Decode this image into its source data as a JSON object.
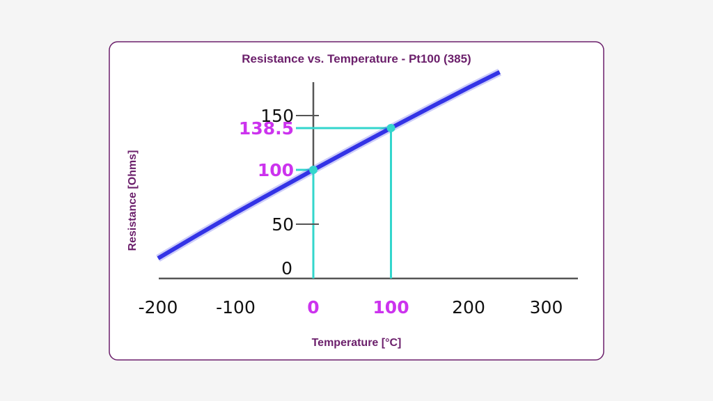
{
  "colors": {
    "frame": "#6b1f6b",
    "title": "#6b1f6b",
    "curve": "#3333e6",
    "guide": "#33d6cc",
    "highlight": "#cc33ee",
    "axis": "#555555",
    "text": "#111111"
  },
  "chart_data": {
    "type": "line",
    "title": "Resistance  vs. Temperature - Pt100 (385)",
    "xlabel": "Temperature [°C]",
    "ylabel": "Resistance [Ohms]",
    "xlim": [
      -200,
      350
    ],
    "ylim": [
      0,
      180
    ],
    "x_ticks": [
      {
        "value": -200,
        "label": "-200",
        "highlight": false
      },
      {
        "value": -100,
        "label": "-100",
        "highlight": false
      },
      {
        "value": 0,
        "label": "0",
        "highlight": true
      },
      {
        "value": 100,
        "label": "100",
        "highlight": true
      },
      {
        "value": 200,
        "label": "200",
        "highlight": false
      },
      {
        "value": 300,
        "label": "300",
        "highlight": false
      }
    ],
    "y_ticks": [
      {
        "value": 0,
        "label": "0",
        "highlight": false,
        "mark": false
      },
      {
        "value": 50,
        "label": "50",
        "highlight": false,
        "mark": true
      },
      {
        "value": 100,
        "label": "100",
        "highlight": true,
        "mark": false
      },
      {
        "value": 138.5,
        "label": "138.5",
        "highlight": true,
        "mark": false
      },
      {
        "value": 150,
        "label": "150",
        "highlight": false,
        "mark": true
      }
    ],
    "series": [
      {
        "x": [
          -200,
          -150,
          -100,
          -50,
          0,
          50,
          100,
          150,
          200,
          240
        ],
        "y": [
          18.5,
          39.7,
          60.3,
          80.3,
          100,
          119.4,
          138.5,
          157.3,
          175.8,
          190
        ]
      }
    ],
    "highlight_points": [
      {
        "x": 0,
        "y": 100
      },
      {
        "x": 100,
        "y": 138.5
      }
    ],
    "grid": false
  }
}
